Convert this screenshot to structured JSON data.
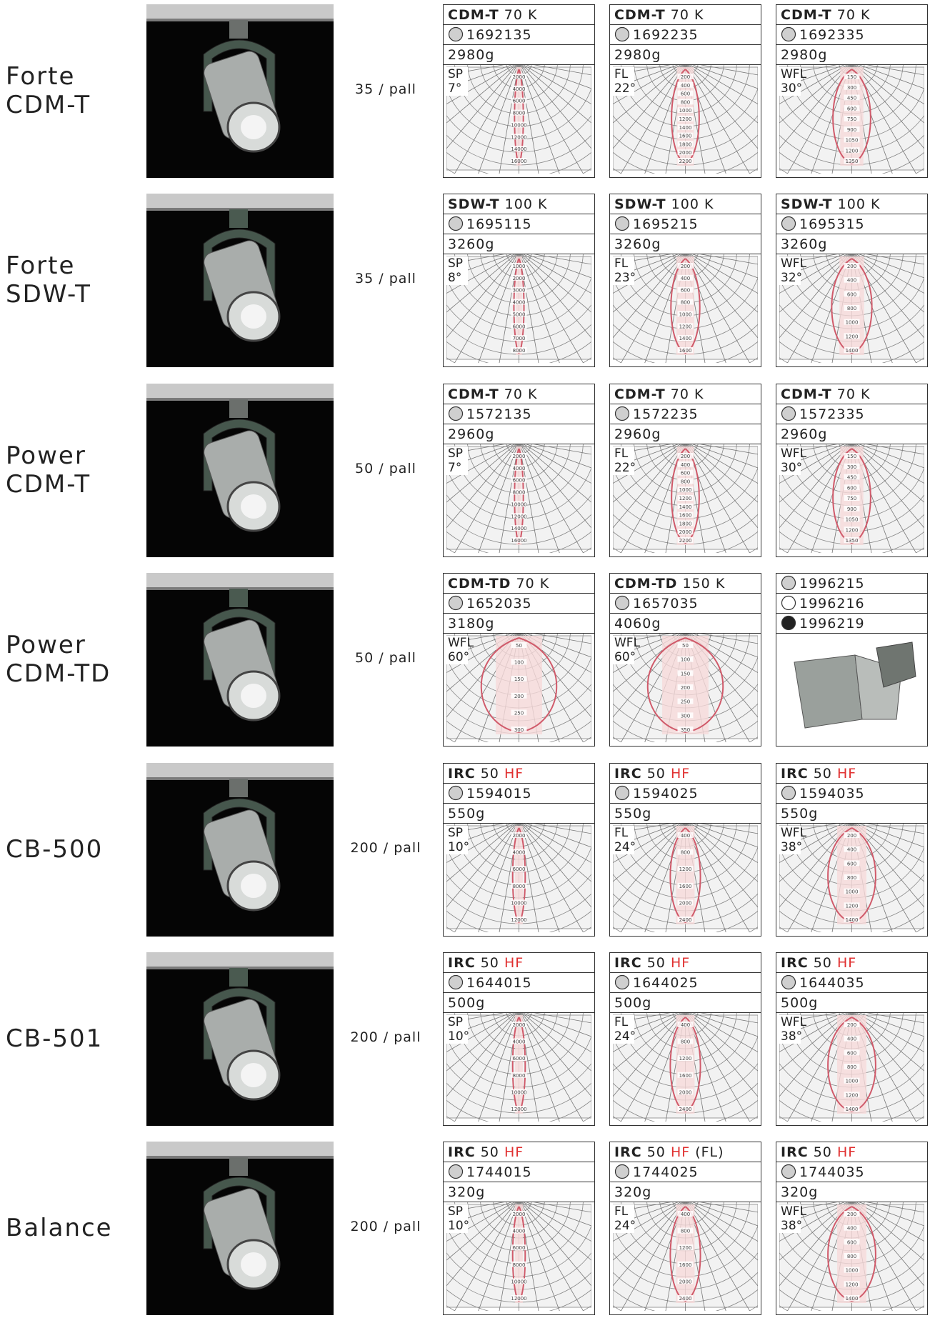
{
  "products": [
    {
      "name": [
        "Forte",
        "CDM-T"
      ],
      "pallet": "35 / pall",
      "cells": [
        {
          "lamp": "CDM-T",
          "power": "70",
          "unit": "K",
          "unit_color": "#222",
          "code": "1692135",
          "weight": "2980g",
          "beam": "SP",
          "angle": "7°",
          "scale": [
            "2000",
            "4000",
            "6000",
            "8000",
            "10000",
            "12000",
            "14000",
            "16000"
          ]
        },
        {
          "lamp": "CDM-T",
          "power": "70",
          "unit": "K",
          "unit_color": "#222",
          "code": "1692235",
          "weight": "2980g",
          "beam": "FL",
          "angle": "22°",
          "scale": [
            "200",
            "400",
            "600",
            "800",
            "1000",
            "1200",
            "1400",
            "1600",
            "1800",
            "2000",
            "2200"
          ]
        },
        {
          "lamp": "CDM-T",
          "power": "70",
          "unit": "K",
          "unit_color": "#222",
          "code": "1692335",
          "weight": "2980g",
          "beam": "WFL",
          "angle": "30°",
          "scale": [
            "150",
            "300",
            "450",
            "600",
            "750",
            "900",
            "1050",
            "1200",
            "1350"
          ]
        }
      ]
    },
    {
      "name": [
        "Forte",
        "SDW-T"
      ],
      "pallet": "35 / pall",
      "cells": [
        {
          "lamp": "SDW-T",
          "power": "100",
          "unit": "K",
          "unit_color": "#222",
          "code": "1695115",
          "weight": "3260g",
          "beam": "SP",
          "angle": "8°",
          "scale": [
            "1000",
            "2000",
            "3000",
            "4000",
            "5000",
            "6000",
            "7000",
            "8000"
          ]
        },
        {
          "lamp": "SDW-T",
          "power": "100",
          "unit": "K",
          "unit_color": "#222",
          "code": "1695215",
          "weight": "3260g",
          "beam": "FL",
          "angle": "23°",
          "scale": [
            "200",
            "400",
            "600",
            "800",
            "1000",
            "1200",
            "1400",
            "1600"
          ]
        },
        {
          "lamp": "SDW-T",
          "power": "100",
          "unit": "K",
          "unit_color": "#222",
          "code": "1695315",
          "weight": "3260g",
          "beam": "WFL",
          "angle": "32°",
          "scale": [
            "200",
            "400",
            "600",
            "800",
            "1000",
            "1200",
            "1400"
          ]
        }
      ]
    },
    {
      "name": [
        "Power",
        "CDM-T"
      ],
      "pallet": "50 / pall",
      "cells": [
        {
          "lamp": "CDM-T",
          "power": "70",
          "unit": "K",
          "unit_color": "#222",
          "code": "1572135",
          "weight": "2960g",
          "beam": "SP",
          "angle": "7°",
          "scale": [
            "2000",
            "4000",
            "6000",
            "8000",
            "10000",
            "12000",
            "14000",
            "16000"
          ]
        },
        {
          "lamp": "CDM-T",
          "power": "70",
          "unit": "K",
          "unit_color": "#222",
          "code": "1572235",
          "weight": "2960g",
          "beam": "FL",
          "angle": "22°",
          "scale": [
            "200",
            "400",
            "600",
            "800",
            "1000",
            "1200",
            "1400",
            "1600",
            "1800",
            "2000",
            "2200"
          ]
        },
        {
          "lamp": "CDM-T",
          "power": "70",
          "unit": "K",
          "unit_color": "#222",
          "code": "1572335",
          "weight": "2960g",
          "beam": "WFL",
          "angle": "30°",
          "scale": [
            "150",
            "300",
            "450",
            "600",
            "750",
            "900",
            "1050",
            "1200",
            "1350"
          ]
        }
      ]
    },
    {
      "name": [
        "Power",
        "CDM-TD"
      ],
      "pallet": "50 / pall",
      "cells": [
        {
          "lamp": "CDM-TD",
          "power": "70",
          "unit": "K",
          "unit_color": "#222",
          "code": "1652035",
          "weight": "3180g",
          "beam": "WFL",
          "angle": "60°",
          "scale": [
            "50",
            "100",
            "150",
            "200",
            "250",
            "300"
          ]
        },
        {
          "lamp": "CDM-TD",
          "power": "150",
          "unit": "K",
          "unit_color": "#222",
          "code": "1657035",
          "weight": "4060g",
          "beam": "WFL",
          "angle": "60°",
          "scale": [
            "50",
            "100",
            "150",
            "200",
            "250",
            "300",
            "350"
          ]
        },
        {
          "options": [
            {
              "code": "1996215",
              "marker": "#cfcfcf"
            },
            {
              "code": "1996216",
              "marker": "#ffffff"
            },
            {
              "code": "1996219",
              "marker": "#222222"
            }
          ]
        }
      ]
    },
    {
      "name": [
        "CB-500"
      ],
      "pallet": "200 / pall",
      "cells": [
        {
          "lamp": "IRC",
          "power": "50",
          "unit": "HF",
          "unit_color": "#e03030",
          "code": "1594015",
          "weight": "550g",
          "beam": "SP",
          "angle": "10°",
          "scale": [
            "2000",
            "4000",
            "6000",
            "8000",
            "10000",
            "12000"
          ]
        },
        {
          "lamp": "IRC",
          "power": "50",
          "unit": "HF",
          "unit_color": "#e03030",
          "code": "1594025",
          "weight": "550g",
          "beam": "FL",
          "angle": "24°",
          "scale": [
            "400",
            "800",
            "1200",
            "1600",
            "2000",
            "2400"
          ]
        },
        {
          "lamp": "IRC",
          "power": "50",
          "unit": "HF",
          "unit_color": "#e03030",
          "code": "1594035",
          "weight": "550g",
          "beam": "WFL",
          "angle": "38°",
          "scale": [
            "200",
            "400",
            "600",
            "800",
            "1000",
            "1200",
            "1400"
          ]
        }
      ]
    },
    {
      "name": [
        "CB-501"
      ],
      "pallet": "200 / pall",
      "cells": [
        {
          "lamp": "IRC",
          "power": "50",
          "unit": "HF",
          "unit_color": "#e03030",
          "code": "1644015",
          "weight": "500g",
          "beam": "SP",
          "angle": "10°",
          "scale": [
            "2000",
            "4000",
            "6000",
            "8000",
            "10000",
            "12000"
          ]
        },
        {
          "lamp": "IRC",
          "power": "50",
          "unit": "HF",
          "unit_color": "#e03030",
          "code": "1644025",
          "weight": "500g",
          "beam": "FL",
          "angle": "24°",
          "scale": [
            "400",
            "800",
            "1200",
            "1600",
            "2000",
            "2400"
          ]
        },
        {
          "lamp": "IRC",
          "power": "50",
          "unit": "HF",
          "unit_color": "#e03030",
          "code": "1644035",
          "weight": "500g",
          "beam": "WFL",
          "angle": "38°",
          "scale": [
            "200",
            "400",
            "600",
            "800",
            "1000",
            "1200",
            "1400"
          ]
        }
      ]
    },
    {
      "name": [
        "Balance"
      ],
      "pallet": "200 / pall",
      "cells": [
        {
          "lamp": "IRC",
          "power": "50",
          "unit": "HF",
          "unit_color": "#e03030",
          "code": "1744015",
          "weight": "320g",
          "beam": "SP",
          "angle": "10°",
          "scale": [
            "2000",
            "4000",
            "6000",
            "8000",
            "10000",
            "12000"
          ]
        },
        {
          "lamp": "IRC",
          "power": "50",
          "unit": "HF",
          "unit_color": "#e03030",
          "note": "(FL)",
          "code": "1744025",
          "weight": "320g",
          "beam": "FL",
          "angle": "24°",
          "scale": [
            "400",
            "800",
            "1200",
            "1600",
            "2000",
            "2400"
          ]
        },
        {
          "lamp": "IRC",
          "power": "50",
          "unit": "HF",
          "unit_color": "#e03030",
          "code": "1744035",
          "weight": "320g",
          "beam": "WFL",
          "angle": "38°",
          "scale": [
            "200",
            "400",
            "600",
            "800",
            "1000",
            "1200",
            "1400"
          ]
        }
      ]
    }
  ]
}
